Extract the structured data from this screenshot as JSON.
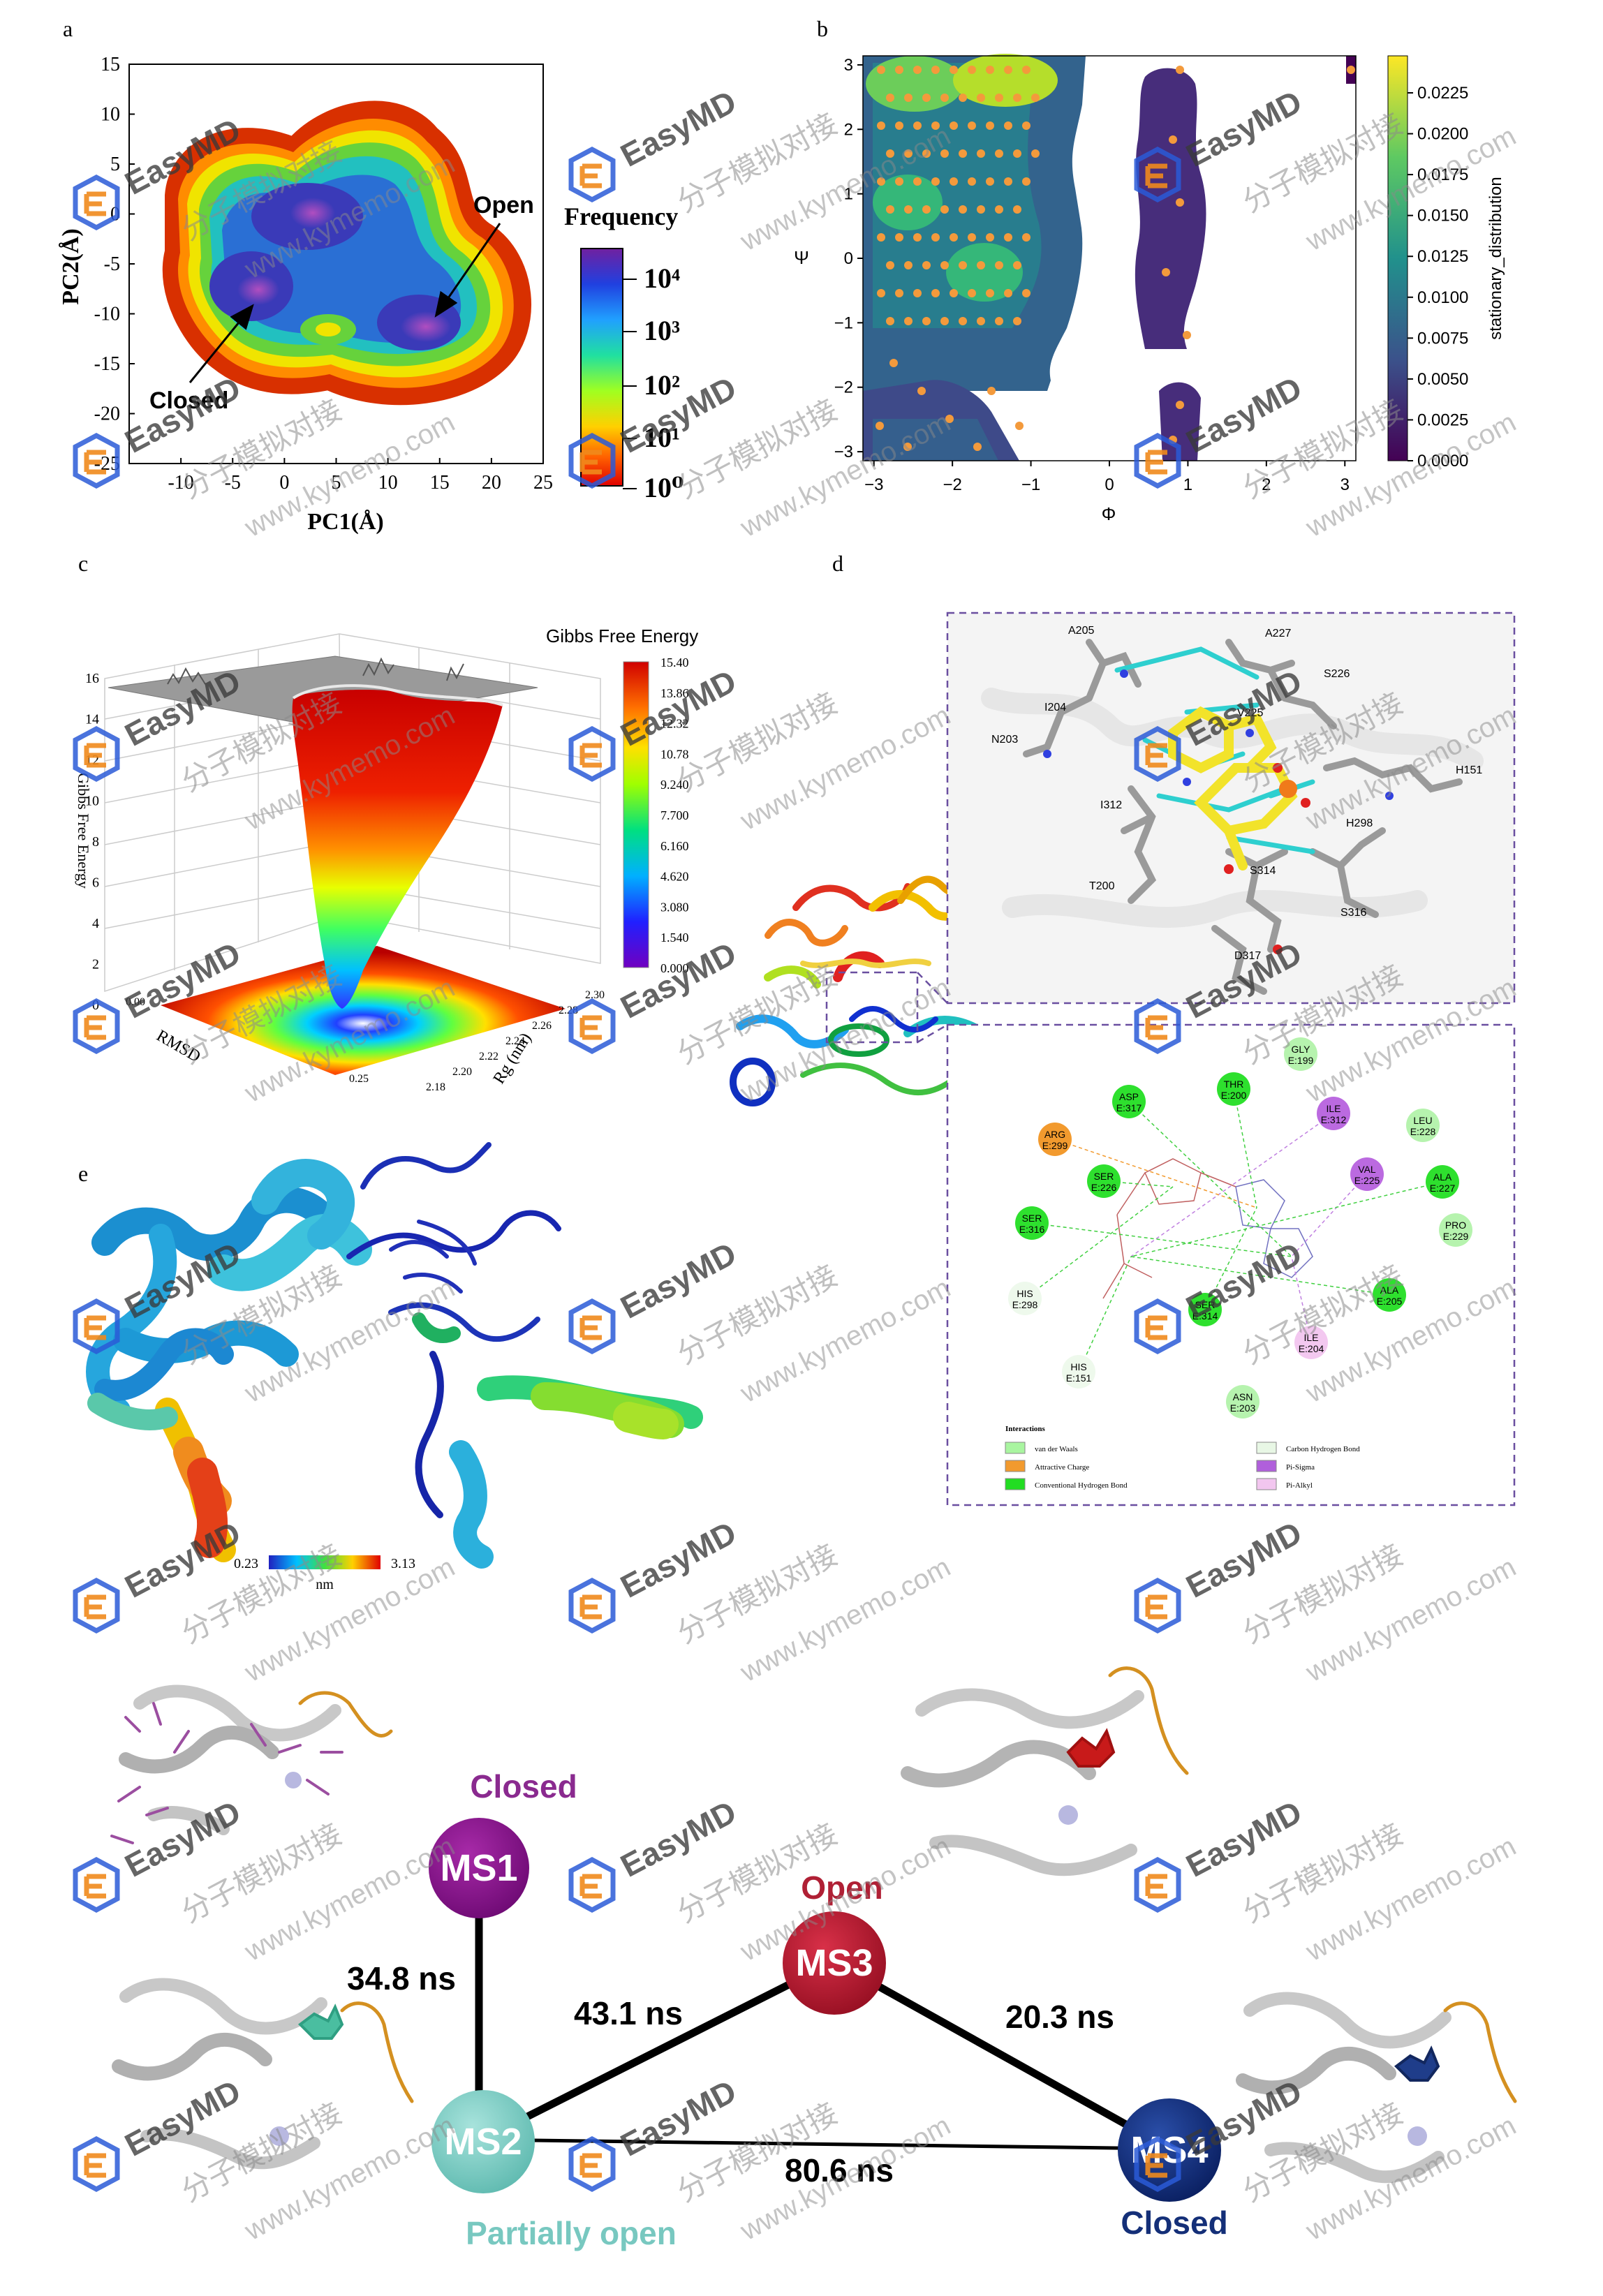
{
  "panel_labels": [
    "a",
    "b",
    "c",
    "d",
    "e"
  ],
  "panel_a": {
    "xlabel": "PC1(Å)",
    "ylabel": "PC2(Å)",
    "xticks": [
      "-10",
      "-5",
      "0",
      "5",
      "10",
      "15",
      "20",
      "25"
    ],
    "yticks": [
      "15",
      "10",
      "5",
      "0",
      "-5",
      "-10",
      "-15",
      "-20",
      "-25"
    ],
    "colorbar_title": "Frequency",
    "colorbar_ticks": [
      "10⁴",
      "10³",
      "10²",
      "10¹",
      "10⁰"
    ],
    "annotation_open": "Open",
    "annotation_closed": "Closed"
  },
  "panel_b": {
    "xlabel": "Φ",
    "ylabel": "Ψ",
    "xticks": [
      "−3",
      "−2",
      "−1",
      "0",
      "1",
      "2",
      "3"
    ],
    "yticks": [
      "3",
      "2",
      "1",
      "0",
      "−1",
      "−2",
      "−3"
    ],
    "colorbar_label": "stationary_distribution",
    "colorbar_ticks": [
      "0.0225",
      "0.0200",
      "0.0175",
      "0.0150",
      "0.0125",
      "0.0100",
      "0.0075",
      "0.0050",
      "0.0025",
      "0.0000"
    ]
  },
  "panel_c": {
    "colorbar_title": "Gibbs Free Energy",
    "colorbar_ticks": [
      "15.40",
      "13.86",
      "12.32",
      "10.78",
      "9.240",
      "7.700",
      "6.160",
      "4.620",
      "3.080",
      "1.540",
      "0.000"
    ],
    "zlabel": "Gibbs Free Energy",
    "zticks": [
      "16",
      "14",
      "12",
      "10",
      "8",
      "6",
      "4",
      "2",
      "0"
    ],
    "axis_x_label": "RMSD",
    "axis_y_label": "Rg (nm)",
    "axis_x_ticks": [
      "0.00",
      "0.25"
    ],
    "axis_y_ticks": [
      "2.30",
      "2.28",
      "2.26",
      "2.24",
      "2.22",
      "2.20",
      "2.18"
    ]
  },
  "panel_d": {
    "residue_labels_3d": [
      "A205",
      "A227",
      "S226",
      "I204",
      "V225",
      "N203",
      "H151",
      "I312",
      "H298",
      "S314",
      "T200",
      "S316",
      "D317"
    ],
    "residues_2d": [
      {
        "name": "GLY",
        "id": "E:199",
        "type": "vdw"
      },
      {
        "name": "THR",
        "id": "E:200",
        "type": "hbond"
      },
      {
        "name": "ASP",
        "id": "E:317",
        "type": "hbond"
      },
      {
        "name": "ILE",
        "id": "E:312",
        "type": "pisigma"
      },
      {
        "name": "LEU",
        "id": "E:228",
        "type": "vdw"
      },
      {
        "name": "ARG",
        "id": "E:299",
        "type": "charge"
      },
      {
        "name": "VAL",
        "id": "E:225",
        "type": "pisigma"
      },
      {
        "name": "ALA",
        "id": "E:227",
        "type": "hbond"
      },
      {
        "name": "SER",
        "id": "E:226",
        "type": "hbond"
      },
      {
        "name": "PRO",
        "id": "E:229",
        "type": "vdw"
      },
      {
        "name": "SER",
        "id": "E:316",
        "type": "hbond"
      },
      {
        "name": "ALA",
        "id": "E:205",
        "type": "hbond"
      },
      {
        "name": "HIS",
        "id": "E:298",
        "type": "carbonh"
      },
      {
        "name": "SER",
        "id": "E:314",
        "type": "hbond"
      },
      {
        "name": "ILE",
        "id": "E:204",
        "type": "pialkyl"
      },
      {
        "name": "HIS",
        "id": "E:151",
        "type": "carbonh"
      },
      {
        "name": "ASN",
        "id": "E:203",
        "type": "vdw"
      }
    ],
    "legend_title": "Interactions",
    "legend_items": [
      {
        "label": "van der Waals",
        "color": "#a9f5a0"
      },
      {
        "label": "Attractive Charge",
        "color": "#f29a2e"
      },
      {
        "label": "Conventional Hydrogen Bond",
        "color": "#22dd22"
      },
      {
        "label": "Carbon Hydrogen Bond",
        "color": "#e8f7e5"
      },
      {
        "label": "Pi-Sigma",
        "color": "#b05fdb"
      },
      {
        "label": "Pi-Alkyl",
        "color": "#f2c6ef"
      }
    ]
  },
  "panel_e": {
    "scale_min": "0.23",
    "scale_max": "3.13",
    "scale_unit": "nm"
  },
  "msm": {
    "states": [
      {
        "label": "MS1",
        "state": "Closed",
        "color": "#8a0f8f"
      },
      {
        "label": "MS2",
        "state": "Partially open",
        "color": "#7ccdc4"
      },
      {
        "label": "MS3",
        "state": "Open",
        "color": "#b8162c"
      },
      {
        "label": "MS4",
        "state": "Closed",
        "color": "#0f2a7a"
      }
    ],
    "edges": [
      {
        "from": "MS1",
        "to": "MS2",
        "label": "34.8 ns"
      },
      {
        "from": "MS2",
        "to": "MS3",
        "label": "43.1 ns"
      },
      {
        "from": "MS3",
        "to": "MS4",
        "label": "20.3 ns"
      },
      {
        "from": "MS2",
        "to": "MS4",
        "label": "80.6 ns"
      }
    ]
  },
  "watermark": {
    "brand": "EasyMD",
    "chinese": "分子模拟对接",
    "url": "www.kymemo.com"
  },
  "colors": {
    "viridis": [
      "#440154",
      "#3b528b",
      "#21918c",
      "#5ec962",
      "#fde725"
    ],
    "jet": [
      "#30008f",
      "#0000ff",
      "#00a0ff",
      "#00e0a0",
      "#60ff30",
      "#e0ff00",
      "#ffc000",
      "#ff5000",
      "#d00000"
    ]
  }
}
